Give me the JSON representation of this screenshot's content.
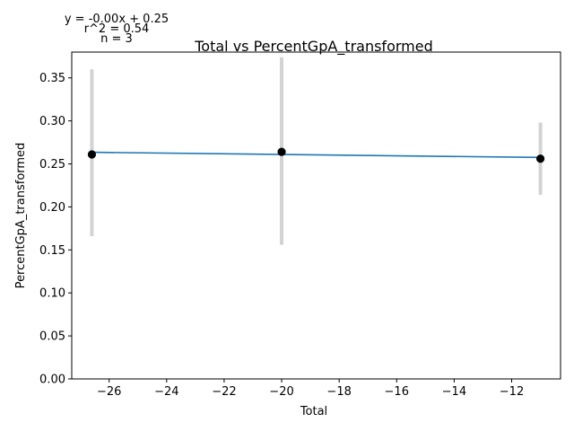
{
  "chart_data": {
    "type": "scatter",
    "title": "Total vs PercentGpA_transformed",
    "xlabel": "Total",
    "ylabel": "PercentGpA_transformed",
    "xlim": [
      -27.3,
      -10.3
    ],
    "ylim": [
      0.0,
      0.38
    ],
    "x_ticks": [
      -26,
      -24,
      -22,
      -20,
      -18,
      -16,
      -14,
      -12
    ],
    "x_tick_labels": [
      "−26",
      "−24",
      "−22",
      "−20",
      "−18",
      "−16",
      "−14",
      "−12"
    ],
    "y_ticks": [
      0.0,
      0.05,
      0.1,
      0.15,
      0.2,
      0.25,
      0.3,
      0.35
    ],
    "y_tick_labels": [
      "0.00",
      "0.05",
      "0.10",
      "0.15",
      "0.20",
      "0.25",
      "0.30",
      "0.35"
    ],
    "grid": false,
    "points": [
      {
        "x": -26.6,
        "y": 0.261,
        "err_low": 0.166,
        "err_high": 0.36
      },
      {
        "x": -20.0,
        "y": 0.264,
        "err_low": 0.156,
        "err_high": 0.374
      },
      {
        "x": -11.0,
        "y": 0.256,
        "err_low": 0.214,
        "err_high": 0.298
      }
    ],
    "fit_line": {
      "x": [
        -26.6,
        -11.0
      ],
      "y": [
        0.2635,
        0.2575
      ]
    },
    "annotations": [
      "y = -0.00x + 0.25",
      "r^2 = 0.54",
      "n = 3"
    ],
    "colors": {
      "points": "#000000",
      "fit_line": "#1f77b4",
      "error_bars": "#d3d3d3"
    }
  }
}
